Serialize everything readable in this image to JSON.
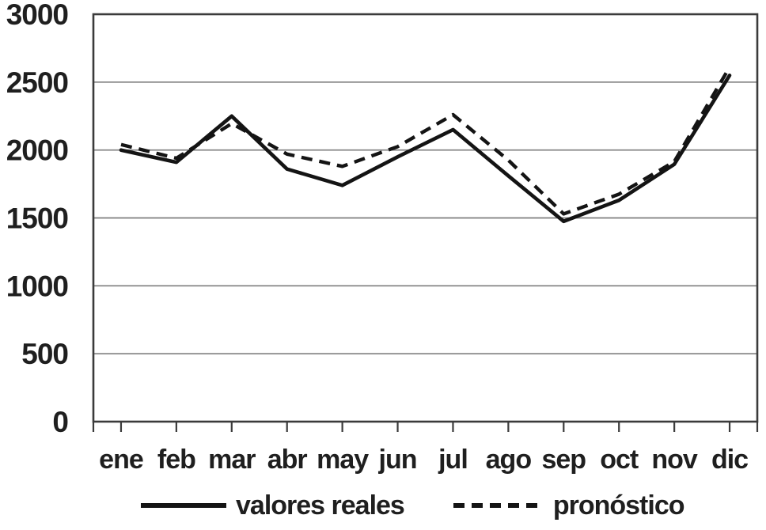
{
  "chart_data": {
    "type": "line",
    "title": "",
    "xlabel": "",
    "ylabel": "",
    "categories": [
      "ene",
      "feb",
      "mar",
      "abr",
      "may",
      "jun",
      "jul",
      "ago",
      "sep",
      "oct",
      "nov",
      "dic"
    ],
    "series": [
      {
        "name": "valores reales",
        "style": "solid",
        "color": "#141414",
        "values": [
          2000,
          1910,
          2250,
          1860,
          1740,
          1950,
          2150,
          1810,
          1475,
          1630,
          1895,
          2550
        ]
      },
      {
        "name": "pronóstico",
        "style": "dashed",
        "color": "#141414",
        "values": [
          2040,
          1940,
          2195,
          1970,
          1880,
          2025,
          2260,
          1925,
          1530,
          1675,
          1915,
          2610
        ]
      }
    ],
    "ylim": [
      0,
      3000
    ],
    "ytick_step": 500,
    "yticks": [
      0,
      500,
      1000,
      1500,
      2000,
      2500,
      3000
    ],
    "grid": true,
    "legend_position": "bottom"
  },
  "colors": {
    "background": "#ffffff",
    "line": "#141414",
    "gridline": "#7e7e7e",
    "axis_border": "#3b3b3b",
    "text": "#1f1f1f"
  }
}
